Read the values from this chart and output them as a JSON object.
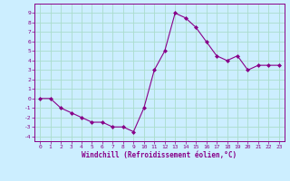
{
  "x": [
    0,
    1,
    2,
    3,
    4,
    5,
    6,
    7,
    8,
    9,
    10,
    11,
    12,
    13,
    14,
    15,
    16,
    17,
    18,
    19,
    20,
    21,
    22,
    23
  ],
  "y": [
    0,
    0,
    -1,
    -1.5,
    -2,
    -2.5,
    -2.5,
    -3,
    -3,
    -3.5,
    -1,
    3,
    5,
    9,
    8.5,
    7.5,
    6,
    4.5,
    4,
    4.5,
    3,
    3.5,
    3.5,
    3.5
  ],
  "xlabel": "Windchill (Refroidissement éolien,°C)",
  "xlim": [
    -0.5,
    23.5
  ],
  "ylim": [
    -4.5,
    10
  ],
  "yticks": [
    -4,
    -3,
    -2,
    -1,
    0,
    1,
    2,
    3,
    4,
    5,
    6,
    7,
    8,
    9
  ],
  "xticks": [
    0,
    1,
    2,
    3,
    4,
    5,
    6,
    7,
    8,
    9,
    10,
    11,
    12,
    13,
    14,
    15,
    16,
    17,
    18,
    19,
    20,
    21,
    22,
    23
  ],
  "line_color": "#880088",
  "marker": "D",
  "marker_size": 2,
  "bg_color": "#cceeff",
  "grid_color": "#aaddcc",
  "tick_color": "#880088",
  "label_color": "#880088"
}
